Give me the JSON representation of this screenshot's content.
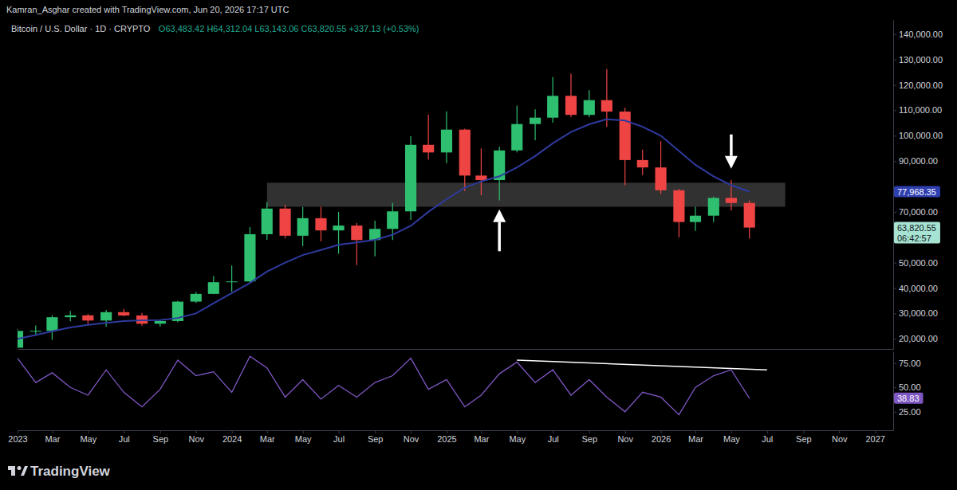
{
  "header": "Kamran_Asghar created with TradingView.com, Jun 20, 2026 17:17 UTC",
  "footer": "TradingView",
  "chart_data": [
    {
      "type": "candlestick",
      "title": "Bitcoin / U.S. Dollar · 1D · CRYPTO",
      "subtitle": "O63,483.42 H64,312.04 L63,143.06 C63,820.55 +337.13 (+0.53%)",
      "x": [
        "2023-01",
        "2023-02",
        "2023-03",
        "2023-04",
        "2023-05",
        "2023-06",
        "2023-07",
        "2023-08",
        "2023-09",
        "2023-10",
        "2023-11",
        "2023-12",
        "2024-01",
        "2024-02",
        "2024-03",
        "2024-04",
        "2024-05",
        "2024-06",
        "2024-07",
        "2024-08",
        "2024-09",
        "2024-10",
        "2024-11",
        "2024-12",
        "2025-01",
        "2025-02",
        "2025-03",
        "2025-04",
        "2025-05",
        "2025-06",
        "2025-07",
        "2025-08",
        "2025-09",
        "2025-10",
        "2025-11",
        "2025-12",
        "2026-01",
        "2026-02",
        "2026-03",
        "2026-04",
        "2026-05",
        "2026-06"
      ],
      "series": [
        {
          "type": "candlestick",
          "open": [
            16500,
            23100,
            23150,
            28500,
            29250,
            27200,
            30500,
            29200,
            25950,
            27000,
            34650,
            37700,
            42300,
            42600,
            61200,
            71300,
            60600,
            67500,
            62700,
            64600,
            58900,
            63300,
            70200,
            96400,
            93400,
            102400,
            84300,
            82500,
            94200,
            104600,
            107100,
            115700,
            108200,
            114000,
            109500,
            90400,
            87500,
            78500,
            66000,
            68500,
            75500,
            73500
          ],
          "high": [
            23900,
            25250,
            29200,
            31000,
            29800,
            31400,
            31800,
            30200,
            27500,
            35000,
            38450,
            44700,
            48900,
            64000,
            73800,
            72800,
            71900,
            72000,
            70000,
            65600,
            66500,
            73600,
            99800,
            108300,
            109600,
            102800,
            95000,
            95700,
            111900,
            110400,
            123100,
            124400,
            117900,
            126200,
            111000,
            94500,
            97800,
            79000,
            72000,
            76000,
            82500,
            74500
          ],
          "low": [
            16500,
            21400,
            19600,
            26900,
            25800,
            24800,
            28900,
            25200,
            24900,
            26550,
            34100,
            37600,
            38500,
            41900,
            59000,
            59600,
            56500,
            58400,
            53500,
            49000,
            52500,
            58900,
            66800,
            90500,
            89200,
            78200,
            76600,
            74500,
            93400,
            98200,
            105100,
            107300,
            107300,
            103500,
            80600,
            84500,
            77000,
            60000,
            62500,
            66000,
            70500,
            59500
          ],
          "close": [
            23100,
            23150,
            28500,
            29250,
            27200,
            30500,
            29200,
            25950,
            27000,
            34650,
            37700,
            42300,
            42600,
            61200,
            71300,
            60600,
            67500,
            62700,
            64600,
            58900,
            63300,
            70200,
            96400,
            93400,
            102400,
            84300,
            82500,
            94200,
            104600,
            107100,
            115700,
            108200,
            114000,
            109500,
            90400,
            87500,
            78500,
            66000,
            68500,
            75500,
            73500,
            63820.55
          ]
        },
        {
          "type": "line",
          "color": "#2f3a9e",
          "values": [
            20000,
            21500,
            23000,
            24500,
            25500,
            26300,
            27000,
            27300,
            27400,
            28200,
            30000,
            34000,
            38000,
            42000,
            46500,
            50000,
            53000,
            55000,
            57000,
            58000,
            59000,
            61000,
            64500,
            70000,
            75000,
            79500,
            82000,
            84000,
            87500,
            92000,
            97000,
            101500,
            104500,
            106500,
            106000,
            103500,
            100000,
            94000,
            88500,
            84000,
            80500,
            77968.35
          ]
        }
      ],
      "xlim": [
        "2023-01",
        "2027-02"
      ],
      "ylim": [
        16000,
        145600
      ],
      "yticks": [
        {
          "value": 20000,
          "label": "20,000.00"
        },
        {
          "value": 30000,
          "label": "30,000.00"
        },
        {
          "value": 40000,
          "label": "40,000.00"
        },
        {
          "value": 50000,
          "label": "50,000.00"
        },
        {
          "value": 70000,
          "label": "70,000.00"
        },
        {
          "value": 90000,
          "label": "90,000.00"
        },
        {
          "value": 100000,
          "label": "100,000.00"
        },
        {
          "value": 110000,
          "label": "110,000.00"
        },
        {
          "value": 120000,
          "label": "120,000.00"
        },
        {
          "value": 130000,
          "label": "130,000.00"
        },
        {
          "value": 140000,
          "label": "140,000.00"
        }
      ],
      "grid": false,
      "tick_labels": "y",
      "zone": {
        "x": [
          "2024-03",
          "2026-08"
        ],
        "y": [
          72000,
          81500
        ]
      },
      "arrows": [
        {
          "x": "2025-04",
          "from": 54500,
          "to": 71000
        },
        {
          "x": "2026-05",
          "from": 100500,
          "to": 87000
        }
      ],
      "price_labels": [
        {
          "value": 77968.35,
          "label": "77,968.35",
          "color": "#2f3fb0"
        },
        {
          "value": 63820.55,
          "label": "63,820.55",
          "countdown": "06:42:57",
          "color": "#a7e3d3"
        }
      ]
    },
    {
      "type": "line",
      "x": [
        "2023-01",
        "2023-02",
        "2023-03",
        "2023-04",
        "2023-05",
        "2023-06",
        "2023-07",
        "2023-08",
        "2023-09",
        "2023-10",
        "2023-11",
        "2023-12",
        "2024-01",
        "2024-02",
        "2024-03",
        "2024-04",
        "2024-05",
        "2024-06",
        "2024-07",
        "2024-08",
        "2024-09",
        "2024-10",
        "2024-11",
        "2024-12",
        "2025-01",
        "2025-02",
        "2025-03",
        "2025-04",
        "2025-05",
        "2025-06",
        "2025-07",
        "2025-08",
        "2025-09",
        "2025-10",
        "2025-11",
        "2025-12",
        "2026-01",
        "2026-02",
        "2026-03",
        "2026-04",
        "2026-05",
        "2026-06"
      ],
      "series": [
        {
          "type": "line",
          "color": "#7e57c2",
          "values": [
            80,
            55,
            65,
            50,
            42,
            68,
            45,
            30,
            48,
            78,
            62,
            66,
            45,
            82,
            70,
            40,
            58,
            38,
            52,
            40,
            55,
            62,
            80,
            48,
            58,
            30,
            42,
            64,
            76,
            55,
            68,
            42,
            58,
            40,
            25,
            45,
            40,
            22,
            50,
            62,
            68,
            38.83
          ]
        }
      ],
      "xlim": [
        "2023-01",
        "2027-02"
      ],
      "ylim": [
        6,
        87
      ],
      "xticks": [
        {
          "value": "2023-01",
          "label": "2023"
        },
        {
          "value": "2023-03",
          "label": "Mar"
        },
        {
          "value": "2023-05",
          "label": "May"
        },
        {
          "value": "2023-07",
          "label": "Jul"
        },
        {
          "value": "2023-09",
          "label": "Sep"
        },
        {
          "value": "2023-11",
          "label": "Nov"
        },
        {
          "value": "2024-01",
          "label": "2024"
        },
        {
          "value": "2024-03",
          "label": "Mar"
        },
        {
          "value": "2024-05",
          "label": "May"
        },
        {
          "value": "2024-07",
          "label": "Jul"
        },
        {
          "value": "2024-09",
          "label": "Sep"
        },
        {
          "value": "2024-11",
          "label": "Nov"
        },
        {
          "value": "2025-01",
          "label": "2025"
        },
        {
          "value": "2025-03",
          "label": "Mar"
        },
        {
          "value": "2025-05",
          "label": "May"
        },
        {
          "value": "2025-07",
          "label": "Jul"
        },
        {
          "value": "2025-09",
          "label": "Sep"
        },
        {
          "value": "2025-11",
          "label": "Nov"
        },
        {
          "value": "2026-01",
          "label": "2026"
        },
        {
          "value": "2026-03",
          "label": "Mar"
        },
        {
          "value": "2026-05",
          "label": "May"
        },
        {
          "value": "2026-07",
          "label": "Jul"
        },
        {
          "value": "2026-09",
          "label": "Sep"
        },
        {
          "value": "2026-11",
          "label": "Nov"
        },
        {
          "value": "2027-01",
          "label": "2027"
        }
      ],
      "yticks": [
        {
          "value": 25,
          "label": "25.00"
        },
        {
          "value": 50,
          "label": "50.00"
        },
        {
          "value": 75,
          "label": "75.00"
        }
      ],
      "grid": false,
      "trendline": {
        "x": [
          "2025-05",
          "2026-07"
        ],
        "y": [
          78,
          68
        ]
      },
      "price_labels": [
        {
          "value": 38.83,
          "label": "38.83",
          "color": "#7e57c2"
        }
      ]
    }
  ]
}
